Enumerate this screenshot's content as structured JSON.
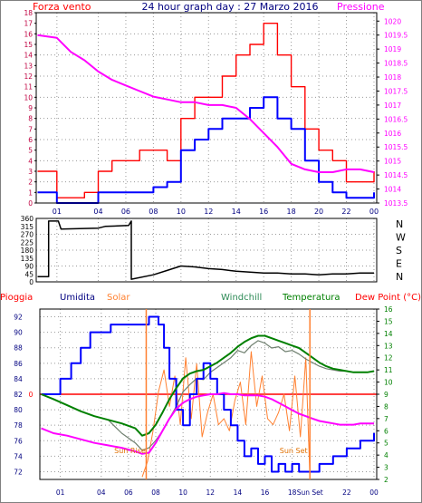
{
  "colors": {
    "background": "#ffffff",
    "frame": "#000000",
    "grid": "#9a9a9a",
    "pink": "#ff00ff",
    "red": "#ff0000",
    "darkred": "#c00040",
    "blue": "#0000ff",
    "navy": "#000080",
    "green": "#008000",
    "windchill": "#708070",
    "solar": "#ff8030",
    "windchill_label": "#2e8b57",
    "orange": "#e07000"
  },
  "header": {
    "left_label": "Forza vento",
    "title": "24 hour graph day : 27 Marzo 2016",
    "right_label": "Pressione"
  },
  "xaxis": {
    "ticks": [
      {
        "t": 1,
        "label": "01"
      },
      {
        "t": 4,
        "label": "04"
      },
      {
        "t": 6,
        "label": "06"
      },
      {
        "t": 8,
        "label": "08"
      },
      {
        "t": 10,
        "label": "10"
      },
      {
        "t": 12,
        "label": "12"
      },
      {
        "t": 14,
        "label": "14"
      },
      {
        "t": 16,
        "label": "16"
      },
      {
        "t": 18,
        "label": "18"
      },
      {
        "t": 20,
        "label": "20"
      },
      {
        "t": 22,
        "label": "22"
      },
      {
        "t": 24,
        "label": "00"
      }
    ],
    "bottom_ticks": [
      {
        "t": 1,
        "label": "01"
      },
      {
        "t": 4,
        "label": "04"
      },
      {
        "t": 6,
        "label": "06"
      },
      {
        "t": 8,
        "label": "08"
      },
      {
        "t": 10,
        "label": "10"
      },
      {
        "t": 12,
        "label": "12"
      },
      {
        "t": 14,
        "label": "14"
      },
      {
        "t": 16,
        "label": "16"
      },
      {
        "t": 18,
        "label": "18"
      },
      {
        "t": 19.3,
        "label": "Sun Set"
      },
      {
        "t": 22,
        "label": "22"
      },
      {
        "t": 24,
        "label": "00"
      }
    ]
  },
  "chart_data": [
    {
      "type": "line",
      "panel": "wind-pressure",
      "left_axis_label": "Forza vento",
      "right_axis_label": "Pressione",
      "x_range": [
        -0.5,
        24.2
      ],
      "left_ylim": [
        0,
        18
      ],
      "left_ticks": [
        "0",
        "1",
        "2",
        "3",
        "4",
        "5",
        "6",
        "7",
        "8",
        "9",
        "10",
        "11",
        "12",
        "13",
        "14",
        "15",
        "16",
        "17",
        "18"
      ],
      "right_ylim": [
        1013.5,
        1020.3
      ],
      "right_ticks": [
        "1013.5",
        "1014",
        "1014.5",
        "1015",
        "1015.5",
        "1016",
        "1016.5",
        "1017",
        "1017.5",
        "1018",
        "1018.5",
        "1019",
        "1019.5",
        "1020"
      ],
      "series": [
        {
          "role": "gust",
          "axis": "left",
          "color": "red",
          "x": [
            -0.4,
            0.3,
            1,
            2,
            3,
            4,
            5,
            6,
            7,
            8,
            9,
            10,
            11,
            12,
            13,
            14,
            15,
            16,
            17,
            18,
            19,
            20,
            21,
            22,
            23,
            24
          ],
          "y": [
            3,
            3,
            0.5,
            0.5,
            1,
            3,
            4,
            4,
            5,
            5,
            4,
            8,
            10,
            10,
            12,
            14,
            15,
            17,
            14,
            11,
            7,
            5,
            4,
            2,
            2,
            3
          ]
        },
        {
          "role": "speed",
          "axis": "left",
          "color": "blue",
          "x": [
            -0.4,
            0.3,
            1,
            2,
            3,
            4,
            5,
            6,
            7,
            8,
            9,
            10,
            11,
            12,
            13,
            14,
            15,
            16,
            17,
            18,
            19,
            20,
            21,
            22,
            23,
            24
          ],
          "y": [
            1,
            1,
            0,
            0,
            0,
            1,
            1,
            1,
            1,
            1.5,
            2,
            5,
            6,
            7,
            8,
            8,
            9,
            10,
            8,
            7,
            4,
            2,
            1,
            0.5,
            0.5,
            1
          ]
        },
        {
          "role": "pressure",
          "axis": "right",
          "color": "pink",
          "x": [
            -0.4,
            1,
            2,
            3,
            4,
            5,
            6,
            7,
            8,
            9,
            10,
            11,
            12,
            13,
            14,
            15,
            16,
            17,
            18,
            19,
            20,
            21,
            22,
            23,
            24
          ],
          "y": [
            1019.5,
            1019.4,
            1018.9,
            1018.6,
            1018.2,
            1017.9,
            1017.7,
            1017.5,
            1017.3,
            1017.2,
            1017.1,
            1017.1,
            1017.0,
            1017.0,
            1016.9,
            1016.5,
            1016.0,
            1015.5,
            1014.9,
            1014.7,
            1014.6,
            1014.6,
            1014.7,
            1014.7,
            1014.6
          ]
        }
      ]
    },
    {
      "type": "line",
      "panel": "wind-direction",
      "x_range": [
        -0.5,
        24.2
      ],
      "ylim": [
        0,
        360
      ],
      "left_ticks": [
        "0",
        "45",
        "90",
        "135",
        "180",
        "225",
        "270",
        "315",
        "360"
      ],
      "right_labels": [
        "N",
        "W",
        "S",
        "E",
        "N"
      ],
      "series": [
        {
          "role": "direction",
          "color": "black",
          "x": [
            -0.4,
            0.4,
            0.4,
            1.1,
            1.3,
            1.3,
            4,
            4.5,
            6.2,
            6.4,
            6.4,
            8,
            9,
            10,
            11,
            12,
            13,
            14,
            15,
            16,
            17,
            18,
            19,
            20,
            21,
            22,
            23,
            24
          ],
          "y": [
            30,
            30,
            345,
            345,
            300,
            300,
            305,
            315,
            320,
            345,
            15,
            40,
            65,
            90,
            85,
            75,
            70,
            60,
            55,
            50,
            50,
            45,
            45,
            40,
            45,
            45,
            50,
            50
          ]
        }
      ]
    },
    {
      "type": "line",
      "panel": "humidity-temperature",
      "legend": [
        "Pioggia",
        "Umidita",
        "Solar",
        "Windchill",
        "Temperatura",
        "Dew Point (°C)"
      ],
      "x_range": [
        -0.5,
        24.2
      ],
      "left_ylim": [
        71,
        93
      ],
      "left_ticks": [
        "72",
        "74",
        "76",
        "78",
        "80",
        "82",
        "84",
        "86",
        "88",
        "90",
        "92"
      ],
      "right_ylim": [
        2,
        16
      ],
      "right_ticks": [
        "2",
        "3",
        "4",
        "5",
        "6",
        "7",
        "8",
        "9",
        "10",
        "11",
        "12",
        "13",
        "14",
        "15",
        "16"
      ],
      "rain_value": "0",
      "annotations": [
        {
          "text": "Sun Rise",
          "t": 7.3
        },
        {
          "text": "Sun Set",
          "t": 19.3
        }
      ],
      "series": [
        {
          "name": "Umidita",
          "axis": "left",
          "color": "blue",
          "x": [
            -0.4,
            0.5,
            1,
            1.8,
            2.5,
            3.2,
            4,
            4.7,
            5.5,
            6.5,
            7.1,
            7.5,
            8.2,
            8.6,
            9,
            9.5,
            10,
            10.5,
            11,
            11.5,
            12,
            12.5,
            13,
            13.5,
            14,
            14.5,
            15,
            15.5,
            16,
            16.5,
            17,
            17.5,
            18,
            18.5,
            19,
            19.5,
            20,
            20.5,
            21,
            21.5,
            22,
            22.5,
            23,
            23.5,
            24
          ],
          "y": [
            82,
            82,
            84,
            86,
            88,
            90,
            90,
            91,
            91,
            91,
            91,
            92,
            91,
            88,
            84,
            80,
            78,
            82,
            84,
            86,
            84,
            82,
            80,
            78,
            76,
            74,
            75,
            73,
            74,
            72,
            73,
            72,
            73,
            72,
            72,
            72,
            73,
            73,
            74,
            74,
            75,
            75,
            76,
            76,
            77
          ]
        },
        {
          "name": "Temperatura",
          "axis": "right",
          "color": "green",
          "x": [
            -0.4,
            0.5,
            1.5,
            2.5,
            3.5,
            4.5,
            5.5,
            6.5,
            7,
            7.5,
            8,
            8.5,
            9,
            9.5,
            10,
            10.5,
            11,
            11.5,
            12,
            12.5,
            13,
            13.5,
            14,
            14.5,
            15,
            15.5,
            16,
            16.5,
            17,
            17.5,
            18,
            18.5,
            19,
            19.5,
            20,
            20.5,
            21,
            21.5,
            22,
            22.5,
            23,
            23.5,
            24
          ],
          "y": [
            9,
            8.6,
            8.1,
            7.6,
            7.2,
            6.9,
            6.6,
            6.2,
            5.6,
            5.8,
            6.5,
            7.5,
            8.6,
            9.5,
            10.3,
            10.7,
            10.9,
            11.0,
            11.3,
            11.6,
            12.0,
            12.4,
            12.9,
            13.3,
            13.6,
            13.8,
            13.8,
            13.6,
            13.4,
            13.2,
            13.0,
            12.8,
            12.4,
            12.0,
            11.6,
            11.3,
            11.1,
            11.0,
            10.9,
            10.8,
            10.8,
            10.8,
            10.9
          ]
        },
        {
          "name": "Windchill",
          "axis": "right",
          "color": "windchill",
          "x": [
            -0.4,
            0.5,
            1.5,
            2.5,
            3.5,
            4.5,
            5.5,
            6.5,
            7,
            7.5,
            8,
            8.5,
            9,
            9.5,
            10,
            10.5,
            11,
            11.5,
            12,
            12.5,
            13,
            13.5,
            14,
            14.5,
            15,
            15.5,
            16,
            16.5,
            17,
            17.5,
            18,
            18.5,
            19,
            19.5,
            20,
            20.5,
            21,
            21.5,
            22,
            22.5,
            23,
            23.5,
            24
          ],
          "y": [
            9,
            8.6,
            8.1,
            7.6,
            7.2,
            6.9,
            5.8,
            5.0,
            4.4,
            4.6,
            5.2,
            6.0,
            7.0,
            8.0,
            9.2,
            9.8,
            10.3,
            10.2,
            10.8,
            11.2,
            11.6,
            12.0,
            12.6,
            12.4,
            13.0,
            13.4,
            13.2,
            12.8,
            12.9,
            12.5,
            12.6,
            12.3,
            11.9,
            11.6,
            11.3,
            11.1,
            11.0,
            10.9,
            10.9,
            10.8,
            10.8,
            10.8,
            10.9
          ]
        },
        {
          "name": "Dew Point (°C)",
          "axis": "right",
          "color": "pink",
          "x": [
            -0.4,
            0.5,
            1.5,
            2.5,
            3.5,
            4.5,
            5.5,
            6.5,
            7,
            7.5,
            8,
            8.5,
            9,
            9.5,
            10,
            10.5,
            11,
            11.5,
            12,
            12.5,
            13,
            13.5,
            14,
            14.5,
            15,
            15.5,
            16,
            16.5,
            17,
            17.5,
            18,
            18.5,
            19,
            19.5,
            20,
            20.5,
            21,
            21.5,
            22,
            22.5,
            23,
            23.5,
            24
          ],
          "y": [
            6.2,
            5.8,
            5.6,
            5.3,
            5.0,
            4.8,
            4.6,
            4.3,
            4.1,
            4.2,
            5.0,
            6.0,
            7.0,
            7.8,
            8.3,
            8.6,
            8.8,
            8.9,
            9.0,
            9.0,
            9.1,
            9.0,
            9.0,
            8.9,
            8.9,
            8.9,
            8.8,
            8.6,
            8.3,
            8.0,
            7.7,
            7.4,
            7.2,
            7.0,
            6.8,
            6.7,
            6.6,
            6.5,
            6.5,
            6.5,
            6.6,
            6.6,
            6.6
          ]
        },
        {
          "name": "Solar",
          "axis": "right",
          "color": "solar",
          "x": [
            7,
            7.4,
            7.8,
            8.2,
            8.6,
            9,
            9.4,
            9.8,
            10.2,
            10.6,
            11,
            11.4,
            11.8,
            12.2,
            12.6,
            13,
            13.4,
            13.8,
            14.2,
            14.6,
            15,
            15.4,
            15.8,
            16.2,
            16.6,
            17,
            17.4,
            17.8,
            18.2,
            18.6,
            19,
            19.3
          ],
          "y": [
            2.2,
            3.5,
            6.0,
            9.2,
            11.0,
            8.0,
            10.5,
            6.5,
            12.0,
            7.0,
            11.5,
            5.5,
            7.5,
            9.0,
            6.5,
            7.0,
            6.0,
            8.5,
            10.0,
            6.5,
            12.5,
            8.0,
            10.5,
            7.0,
            6.5,
            7.5,
            9.0,
            6.0,
            10.5,
            5.5,
            12.0,
            2.2
          ]
        }
      ]
    }
  ]
}
